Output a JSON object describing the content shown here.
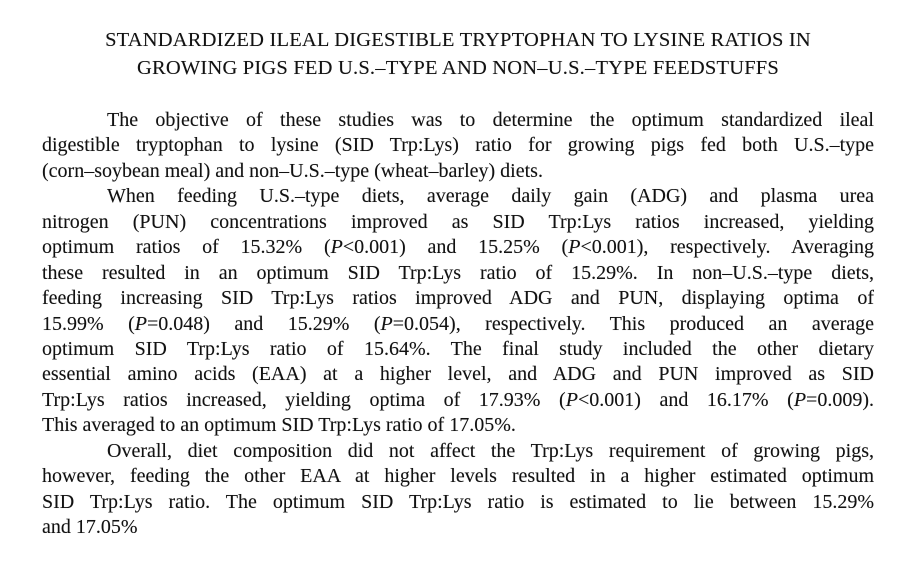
{
  "colors": {
    "background": "#ffffff",
    "text": "#121212"
  },
  "document": {
    "title_lines": [
      "STANDARDIZED ILEAL DIGESTIBLE TRYPTOPHAN TO LYSINE RATIOS IN",
      "GROWING PIGS FED U.S.–TYPE AND NON–U.S.–TYPE FEEDSTUFFS"
    ],
    "paragraphs": [
      {
        "lines": [
          "The objective of these studies was to determine the optimum standardized ileal",
          "digestible tryptophan to lysine (SID Trp:Lys) ratio for growing pigs fed both U.S.–type",
          "(corn–soybean meal) and non–U.S.–type (wheat–barley) diets."
        ]
      },
      {
        "lines": [
          "When feeding U.S.–type diets, average daily gain (ADG) and plasma urea",
          "nitrogen (PUN) concentrations improved as SID Trp:Lys ratios increased, yielding",
          "optimum ratios of 15.32% (*P*<0.001) and 15.25% (*P*<0.001), respectively. Averaging",
          "these resulted in an optimum SID Trp:Lys ratio of 15.29%. In non–U.S.–type diets,",
          "feeding increasing SID Trp:Lys ratios improved ADG and PUN, displaying optima of",
          "15.99% (*P*=0.048) and 15.29% (*P*=0.054), respectively. This produced an average",
          "optimum SID Trp:Lys ratio of 15.64%. The final study included the other dietary",
          "essential amino acids (EAA) at a higher level, and ADG and PUN improved as SID",
          "Trp:Lys ratios increased, yielding optima of 17.93% (*P*<0.001) and 16.17% (*P*=0.009).",
          "This averaged to an optimum SID Trp:Lys ratio of 17.05%."
        ]
      },
      {
        "lines": [
          "Overall, diet composition did not affect the Trp:Lys requirement of growing pigs,",
          "however, feeding the other EAA at higher levels resulted in a higher estimated optimum",
          "SID Trp:Lys ratio. The optimum SID Trp:Lys ratio is estimated to lie between 15.29%",
          "and 17.05%"
        ]
      }
    ]
  }
}
